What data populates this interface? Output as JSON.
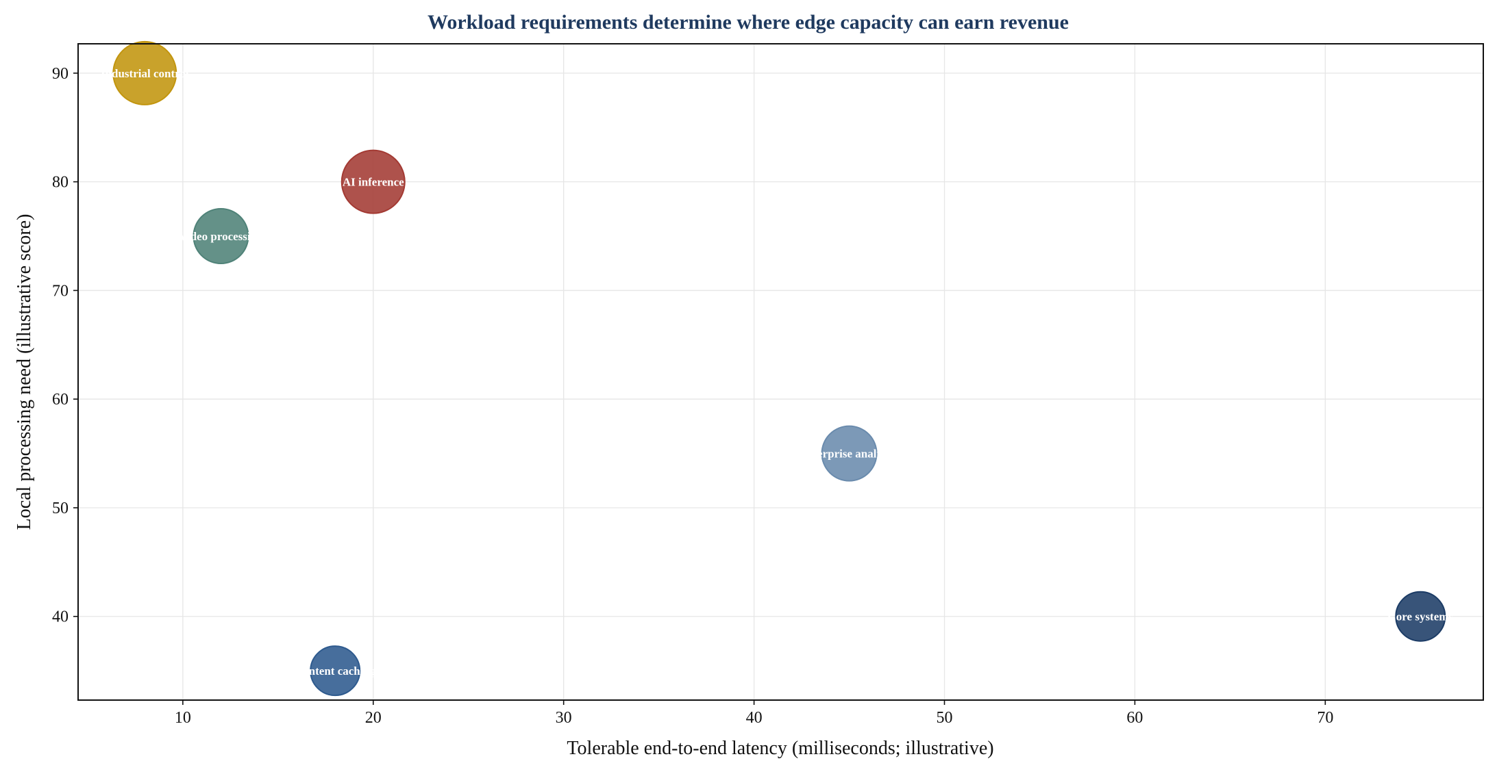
{
  "chart_data": {
    "type": "scatter",
    "title": "Workload requirements determine where edge capacity can earn revenue",
    "xlabel": "Tolerable end-to-end latency (milliseconds; illustrative)",
    "ylabel": "Local processing need (illustrative score)",
    "xlim": [
      4.5,
      78.3
    ],
    "ylim": [
      32.3,
      92.7
    ],
    "xticks": [
      10,
      20,
      30,
      40,
      50,
      60,
      70
    ],
    "yticks": [
      40,
      50,
      60,
      70,
      80,
      90
    ],
    "grid": true,
    "title_color": "#1f3a5f",
    "points": [
      {
        "label": "Industrial control",
        "x": 8,
        "y": 90,
        "size": 1.15,
        "color": "#c2950e"
      },
      {
        "label": "AI inference",
        "x": 20,
        "y": 80,
        "size": 1.15,
        "color": "#a33a33"
      },
      {
        "label": "Video processing",
        "x": 12,
        "y": 75,
        "size": 1.0,
        "color": "#4f8278"
      },
      {
        "label": "Enterprise analytics",
        "x": 45,
        "y": 55,
        "size": 1.0,
        "color": "#6a8bad"
      },
      {
        "label": "Core systems",
        "x": 75,
        "y": 40,
        "size": 0.9,
        "color": "#1c3c66"
      },
      {
        "label": "Content caching",
        "x": 18,
        "y": 35,
        "size": 0.9,
        "color": "#2e5a8e"
      }
    ]
  }
}
